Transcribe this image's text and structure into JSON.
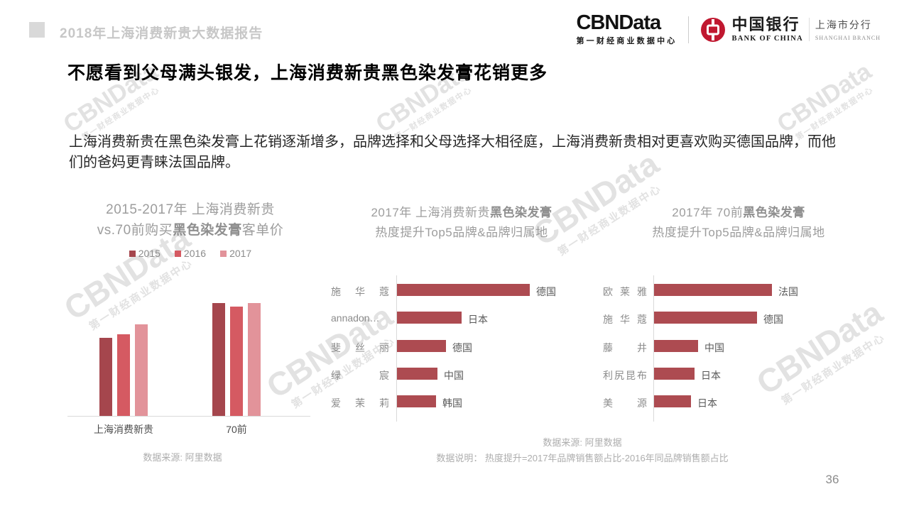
{
  "page": {
    "header": {
      "report_title": "2018年上海消费新贵大数据报告",
      "cbndata": {
        "name": "CBNData",
        "subtitle": "第一财经商业数据中心"
      },
      "boc": {
        "cn": "中国银行",
        "en": "BANK OF CHINA",
        "branch_cn": "上海市分行",
        "branch_en": "SHANGHAI BRANCH"
      }
    },
    "headline": "不愿看到父母满头银发，上海消费新贵黑色染发膏花销更多",
    "body": "上海消费新贵在黑色染发膏上花销逐渐增多，品牌选择和父母选择大相径庭，上海消费新贵相对更喜欢购买德国品牌，而他们的爸妈更青睐法国品牌。",
    "watermark": {
      "title": "CBNData",
      "subtitle": "第一财经商业数据中心"
    },
    "page_number": "36"
  },
  "theme": {
    "bar_2015": "#a5464d",
    "bar_2016": "#d55a62",
    "bar_2017": "#e2939a",
    "hbar_color": "#ad4b51",
    "axis_color": "#d9d9d9"
  },
  "chart_data": [
    {
      "type": "bar",
      "title_line1": "2015-2017年 上海消费新贵",
      "title_line2_prefix": "vs.70前购买",
      "title_line2_bold": "黑色染发膏",
      "title_line2_suffix": "客单价",
      "categories": [
        "上海消费新贵",
        "70前"
      ],
      "series": [
        {
          "name": "2015",
          "color": "#a5464d",
          "values": [
            110,
            159
          ]
        },
        {
          "name": "2016",
          "color": "#d55a62",
          "values": [
            115,
            154
          ]
        },
        {
          "name": "2017",
          "color": "#e2939a",
          "values": [
            129,
            159
          ]
        }
      ],
      "value_note": "relative bar heights, no numeric axis shown",
      "legend_position": "top",
      "source": "数据来源: 阿里数据"
    },
    {
      "type": "bar-horizontal",
      "title_line1_prefix": "2017年  上海消费新贵",
      "title_line1_bold": "黑色染发膏",
      "title_line2": "热度提升Top5品牌&品牌归属地",
      "items": [
        {
          "brand": "施华蔻",
          "country": "德国",
          "value": 187
        },
        {
          "brand": "annadon…",
          "country": "日本",
          "value": 91
        },
        {
          "brand": "斐丝丽",
          "country": "德国",
          "value": 69
        },
        {
          "brand": "绿宸",
          "country": "中国",
          "value": 57
        },
        {
          "brand": "爱茉莉",
          "country": "韩国",
          "value": 55
        }
      ],
      "value_note": "relative bar lengths, no numeric axis shown"
    },
    {
      "type": "bar-horizontal",
      "title_line1_prefix": "2017年  70前",
      "title_line1_bold": "黑色染发膏",
      "title_line2": "热度提升Top5品牌&品牌归属地",
      "items": [
        {
          "brand": "欧莱雅",
          "country": "法国",
          "value": 166
        },
        {
          "brand": "施华蔻",
          "country": "德国",
          "value": 145
        },
        {
          "brand": "藤井",
          "country": "中国",
          "value": 62
        },
        {
          "brand": "利尻昆布",
          "country": "日本",
          "value": 57
        },
        {
          "brand": "美源",
          "country": "日本",
          "value": 52
        }
      ],
      "value_note": "relative bar lengths, no numeric axis shown"
    }
  ],
  "footnotes": {
    "source": "数据来源: 阿里数据",
    "note": "数据说明： 热度提升=2017年品牌销售额占比-2016年同品牌销售额占比"
  }
}
